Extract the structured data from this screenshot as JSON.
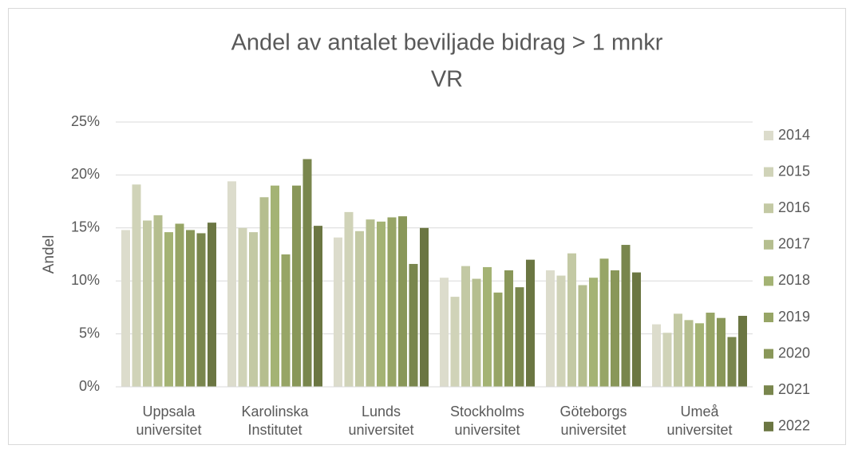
{
  "chart_data": {
    "type": "bar",
    "title": "Andel av antalet beviljade bidrag > 1 mnkr",
    "subtitle": "VR",
    "y_label": "Andel",
    "categories": [
      "Uppsala universitet",
      "Karolinska Institutet",
      "Lunds universitet",
      "Stockholms universitet",
      "Göteborgs universitet",
      "Umeå universitet"
    ],
    "series": [
      {
        "name": "2014",
        "color": "#dcdccc",
        "values": [
          14.8,
          19.4,
          14.1,
          10.3,
          11.0,
          5.9
        ]
      },
      {
        "name": "2015",
        "color": "#d0d3b8",
        "values": [
          19.1,
          15.0,
          16.5,
          8.5,
          10.5,
          5.1
        ]
      },
      {
        "name": "2016",
        "color": "#c3c9a4",
        "values": [
          15.7,
          14.6,
          14.7,
          11.4,
          12.6,
          6.9
        ]
      },
      {
        "name": "2017",
        "color": "#b5be8f",
        "values": [
          16.2,
          17.9,
          15.8,
          10.2,
          9.6,
          6.3
        ]
      },
      {
        "name": "2018",
        "color": "#a4b374",
        "values": [
          14.6,
          19.0,
          15.6,
          11.3,
          10.3,
          6.0
        ]
      },
      {
        "name": "2019",
        "color": "#97a566",
        "values": [
          15.4,
          12.5,
          16.0,
          8.9,
          12.1,
          7.0
        ]
      },
      {
        "name": "2020",
        "color": "#899759",
        "values": [
          14.8,
          19.0,
          16.1,
          11.0,
          11.0,
          6.5
        ]
      },
      {
        "name": "2021",
        "color": "#79864d",
        "values": [
          14.5,
          21.5,
          11.6,
          9.4,
          13.4,
          4.7
        ]
      },
      {
        "name": "2022",
        "color": "#6b7642",
        "values": [
          15.5,
          15.2,
          15.0,
          12.0,
          10.8,
          6.7
        ]
      }
    ],
    "ylim": [
      0,
      25
    ],
    "yticks": [
      {
        "value": 0,
        "label": "0%"
      },
      {
        "value": 5,
        "label": "5%"
      },
      {
        "value": 10,
        "label": "10%"
      },
      {
        "value": 15,
        "label": "15%"
      },
      {
        "value": 20,
        "label": "20%"
      },
      {
        "value": 25,
        "label": "25%"
      }
    ],
    "grid": true,
    "legend": "right"
  }
}
